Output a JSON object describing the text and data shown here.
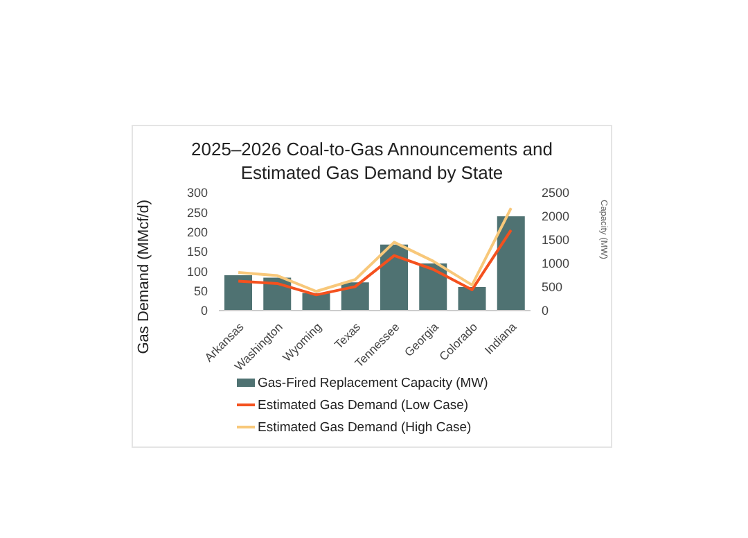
{
  "chart_data": {
    "type": "bar",
    "title": "2025–2026 Coal-to-Gas Announcements and Estimated Gas Demand by State",
    "categories": [
      "Arkansas",
      "Washington",
      "Wyoming",
      "Texas",
      "Tennessee",
      "Georgia",
      "Colorado",
      "Indiana"
    ],
    "series": [
      {
        "name": "Gas-Fired Replacement Capacity (MW)",
        "axis": "y2",
        "color": "#4f7272",
        "values": [
          750,
          700,
          370,
          600,
          1400,
          1000,
          500,
          2000
        ]
      },
      {
        "name": "Estimated Gas Demand (Low Case)",
        "type": "line",
        "color": "#f4511e",
        "values": [
          75,
          69,
          40,
          61,
          140,
          105,
          53,
          205
        ]
      },
      {
        "name": "Estimated Gas Demand (High Case)",
        "type": "line",
        "color": "#f8c87a",
        "values": [
          97,
          89,
          49,
          79,
          174,
          126,
          65,
          261
        ]
      }
    ],
    "ylabel": "Gas Demand (MMcf/d)",
    "y2label": "Capacity (MW)",
    "ylim": [
      0,
      300
    ],
    "yticks": [
      0,
      50,
      100,
      150,
      200,
      250,
      300
    ],
    "y2lim": [
      0,
      2500
    ],
    "y2ticks": [
      0,
      500,
      1000,
      1500,
      2000,
      2500
    ],
    "grid": false,
    "legend": "bottom",
    "marker": "none"
  }
}
